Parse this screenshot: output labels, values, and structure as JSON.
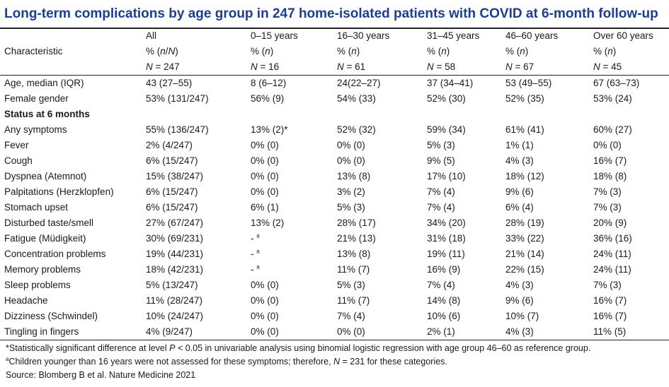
{
  "title": "Long-term complications by age group in 247 home-isolated patients with COVID at 6-month follow-up",
  "header": {
    "characteristic": "Characteristic",
    "groups": [
      "All",
      "0–15 years",
      "16–30 years",
      "31–45 years",
      "46–60 years",
      "Over 60 years"
    ],
    "units": [
      "% (n/N)",
      "% (n)",
      "% (n)",
      "% (n)",
      "% (n)",
      "% (n)"
    ],
    "counts": [
      "N = 247",
      "N = 16",
      "N = 61",
      "N = 58",
      "N = 67",
      "N = 45"
    ]
  },
  "rows": [
    {
      "label": "Age, median (IQR)",
      "cells": [
        "43 (27–55)",
        "8 (6–12)",
        "24(22–27)",
        "37 (34–41)",
        "53 (49–55)",
        "67 (63–73)"
      ]
    },
    {
      "label": "Female gender",
      "cells": [
        "53% (131/247)",
        "56% (9)",
        "54% (33)",
        "52% (30)",
        "52% (35)",
        "53% (24)"
      ]
    },
    {
      "label": "Status at 6 months",
      "section": true,
      "cells": [
        "",
        "",
        "",
        "",
        "",
        ""
      ]
    },
    {
      "label": "Any symptoms",
      "cells": [
        "55% (136/247)",
        "13% (2)*",
        "52% (32)",
        "59% (34)",
        "61% (41)",
        "60% (27)"
      ]
    },
    {
      "label": "Fever",
      "cells": [
        "2% (4/247)",
        "0% (0)",
        "0% (0)",
        "5% (3)",
        "1% (1)",
        "0% (0)"
      ]
    },
    {
      "label": "Cough",
      "cells": [
        "6% (15/247)",
        "0% (0)",
        "0% (0)",
        "9% (5)",
        "4% (3)",
        "16% (7)"
      ]
    },
    {
      "label": "Dyspnea (Atemnot)",
      "cells": [
        "15% (38/247)",
        "0% (0)",
        "13% (8)",
        "17% (10)",
        "18% (12)",
        "18% (8)"
      ]
    },
    {
      "label": "Palpitations (Herzklopfen)",
      "cells": [
        "6% (15/247)",
        "0% (0)",
        "3% (2)",
        "7% (4)",
        "9% (6)",
        "7% (3)"
      ]
    },
    {
      "label": "Stomach upset",
      "cells": [
        "6% (15/247)",
        "6% (1)",
        "5% (3)",
        "7% (4)",
        "6% (4)",
        "7% (3)"
      ]
    },
    {
      "label": "Disturbed taste/smell",
      "cells": [
        "27% (67/247)",
        "13% (2)",
        "28% (17)",
        "34% (20)",
        "28% (19)",
        "20% (9)"
      ]
    },
    {
      "label": "Fatigue (Müdigkeit)",
      "cells": [
        "30% (69/231)",
        "- a",
        "21% (13)",
        "31% (18)",
        "33% (22)",
        "36% (16)"
      ]
    },
    {
      "label": "Concentration problems",
      "cells": [
        "19% (44/231)",
        "- a",
        "13% (8)",
        "19% (11)",
        "21% (14)",
        "24% (11)"
      ]
    },
    {
      "label": "Memory problems",
      "cells": [
        "18% (42/231)",
        "- a",
        "11% (7)",
        "16% (9)",
        "22% (15)",
        "24% (11)"
      ]
    },
    {
      "label": "Sleep problems",
      "cells": [
        "5% (13/247)",
        "0% (0)",
        "5% (3)",
        "7% (4)",
        "4% (3)",
        "7% (3)"
      ]
    },
    {
      "label": "Headache",
      "cells": [
        "11% (28/247)",
        "0% (0)",
        "11% (7)",
        "14% (8)",
        "9% (6)",
        "16% (7)"
      ]
    },
    {
      "label": "Dizziness (Schwindel)",
      "cells": [
        "10% (24/247)",
        "0% (0)",
        "7% (4)",
        "10% (6)",
        "10% (7)",
        "16% (7)"
      ]
    },
    {
      "label": "Tingling in fingers",
      "cells": [
        "4% (9/247)",
        "0% (0)",
        "0% (0)",
        "2% (1)",
        "4% (3)",
        "11% (5)"
      ]
    }
  ],
  "footnotes": [
    "*Statistically significant difference at level P < 0.05 in univariable analysis using binomial logistic regression with age group 46–60 as reference group.",
    "aChildren younger than 16 years were not assessed for these symptoms; therefore, N = 231 for these categories.",
    "Source: Blomberg B et al. Nature Medicine 2021"
  ]
}
